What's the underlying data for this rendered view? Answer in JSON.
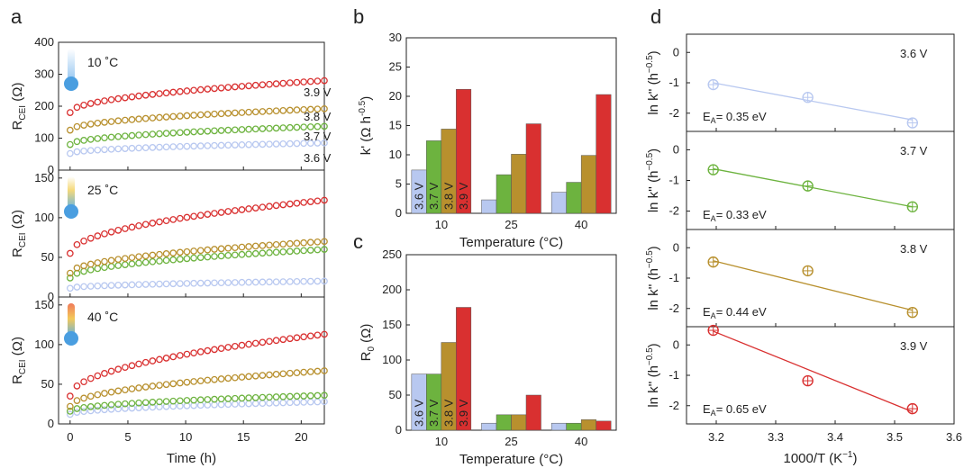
{
  "panel_letters": {
    "a": "a",
    "b": "b",
    "c": "c",
    "d": "d"
  },
  "colors": {
    "3.6 V": "#b8c8f0",
    "3.7 V": "#6db33f",
    "3.8 V": "#b8902e",
    "3.9 V": "#d93030"
  },
  "chart_data": [
    {
      "id": "a",
      "type": "scatter",
      "xlabel": "Time (h)",
      "ylabel_main": "R",
      "ylabel_sub": "CEI",
      "ylabel_unit": " (Ω)",
      "xlim": [
        -1,
        22
      ],
      "xticks": [
        0,
        5,
        10,
        15,
        20
      ],
      "subplots": [
        {
          "temp_label": "10 ˚C",
          "ylim": [
            0,
            400
          ],
          "yticks": [
            0,
            100,
            200,
            300,
            400
          ],
          "series_labels": [
            "3.6 V",
            "3.7 V",
            "3.8 V",
            "3.9 V"
          ],
          "series": [
            {
              "name": "3.6 V",
              "start": 52,
              "end": 85
            },
            {
              "name": "3.7 V",
              "start": 80,
              "end": 137
            },
            {
              "name": "3.8 V",
              "start": 125,
              "end": 192
            },
            {
              "name": "3.9 V",
              "start": 180,
              "end": 280
            }
          ]
        },
        {
          "temp_label": "25 ˚C",
          "ylim": [
            0,
            160
          ],
          "yticks": [
            0,
            50,
            100,
            150
          ],
          "series_labels": [],
          "series": [
            {
              "name": "3.6 V",
              "start": 11,
              "end": 20
            },
            {
              "name": "3.7 V",
              "start": 24,
              "end": 60
            },
            {
              "name": "3.8 V",
              "start": 30,
              "end": 70
            },
            {
              "name": "3.9 V",
              "start": 55,
              "end": 122
            }
          ]
        },
        {
          "temp_label": "40 ˚C",
          "ylim": [
            0,
            160
          ],
          "yticks": [
            0,
            50,
            100,
            150
          ],
          "series_labels": [],
          "series": [
            {
              "name": "3.6 V",
              "start": 12,
              "end": 28
            },
            {
              "name": "3.7 V",
              "start": 16,
              "end": 36
            },
            {
              "name": "3.8 V",
              "start": 22,
              "end": 67
            },
            {
              "name": "3.9 V",
              "start": 35,
              "end": 113
            }
          ]
        }
      ]
    },
    {
      "id": "b",
      "type": "bar",
      "categories": [
        "10",
        "25",
        "40"
      ],
      "xlabel": "Temperature (°C)",
      "ylabel": "k' (Ω h",
      "ylabel_sup": "-0.5",
      "ylabel_end": ")",
      "ylim": [
        0,
        30
      ],
      "yticks": [
        0,
        5,
        10,
        15,
        20,
        25,
        30
      ],
      "bar_labels": [
        "3.6 V",
        "3.7 V",
        "3.8 V",
        "3.9 V"
      ],
      "series": [
        {
          "name": "3.6 V",
          "values": [
            7.4,
            2.3,
            3.6
          ]
        },
        {
          "name": "3.7 V",
          "values": [
            12.4,
            6.6,
            5.3
          ]
        },
        {
          "name": "3.8 V",
          "values": [
            14.4,
            10.1,
            9.9
          ]
        },
        {
          "name": "3.9 V",
          "values": [
            21.2,
            15.3,
            20.3
          ]
        }
      ]
    },
    {
      "id": "c",
      "type": "bar",
      "categories": [
        "10",
        "25",
        "40"
      ],
      "xlabel": "Temperature (°C)",
      "ylabel": "R",
      "ylabel_sub": "0",
      "ylabel_end": " (Ω)",
      "ylim": [
        0,
        250
      ],
      "yticks": [
        0,
        50,
        100,
        150,
        200,
        250
      ],
      "bar_labels": [
        "3.6 V",
        "3.7 V",
        "3.8 V",
        "3.9 V"
      ],
      "series": [
        {
          "name": "3.6 V",
          "values": [
            80,
            10,
            10
          ]
        },
        {
          "name": "3.7 V",
          "values": [
            80,
            22,
            10
          ]
        },
        {
          "name": "3.8 V",
          "values": [
            125,
            22,
            15
          ]
        },
        {
          "name": "3.9 V",
          "values": [
            175,
            50,
            13
          ]
        }
      ]
    },
    {
      "id": "d",
      "type": "scatter",
      "xlabel": "1000/T (K",
      "xlabel_sup": "−1",
      "xlabel_end": ")",
      "ylabel": "ln k'' (h",
      "ylabel_sup": "−0.5",
      "ylabel_end": ")",
      "xlim": [
        3.15,
        3.6
      ],
      "xticks": [
        "3.2",
        "3.3",
        "3.4",
        "3.5",
        "3.6"
      ],
      "subplots": [
        {
          "voltage": "3.6 V",
          "ea_prefix": "E",
          "ea_sub": "A",
          "ea_text": "= 0.35 eV",
          "ylim": [
            -2.6,
            0.6
          ],
          "yticks": [
            "0",
            "-1",
            "-2"
          ],
          "points": [
            {
              "x": 3.195,
              "y": -1.06
            },
            {
              "x": 3.354,
              "y": -1.48
            },
            {
              "x": 3.53,
              "y": -2.32
            }
          ],
          "fit": [
            {
              "x": 3.195,
              "y": -1.0
            },
            {
              "x": 3.53,
              "y": -2.22
            }
          ]
        },
        {
          "voltage": "3.7 V",
          "ea_prefix": "E",
          "ea_sub": "A",
          "ea_text": "= 0.33 eV",
          "ylim": [
            -2.6,
            0.6
          ],
          "yticks": [
            "0",
            "-1",
            "-2"
          ],
          "points": [
            {
              "x": 3.195,
              "y": -0.65
            },
            {
              "x": 3.354,
              "y": -1.18
            },
            {
              "x": 3.53,
              "y": -1.86
            }
          ],
          "fit": [
            {
              "x": 3.195,
              "y": -0.62
            },
            {
              "x": 3.53,
              "y": -1.86
            }
          ]
        },
        {
          "voltage": "3.8 V",
          "ea_prefix": "E",
          "ea_sub": "A",
          "ea_text": "= 0.44 eV",
          "ylim": [
            -2.6,
            0.6
          ],
          "yticks": [
            "0",
            "-1",
            "-2"
          ],
          "points": [
            {
              "x": 3.195,
              "y": -0.47
            },
            {
              "x": 3.354,
              "y": -0.76
            },
            {
              "x": 3.53,
              "y": -2.13
            }
          ],
          "fit": [
            {
              "x": 3.195,
              "y": -0.43
            },
            {
              "x": 3.53,
              "y": -2.06
            }
          ]
        },
        {
          "voltage": "3.9 V",
          "ea_prefix": "E",
          "ea_sub": "A",
          "ea_text": "= 0.65 eV",
          "ylim": [
            -2.6,
            0.6
          ],
          "yticks": [
            "0",
            "-1",
            "-2"
          ],
          "points": [
            {
              "x": 3.195,
              "y": 0.48
            },
            {
              "x": 3.354,
              "y": -1.18
            },
            {
              "x": 3.53,
              "y": -2.1
            }
          ],
          "fit": [
            {
              "x": 3.195,
              "y": 0.45
            },
            {
              "x": 3.53,
              "y": -2.2
            }
          ]
        }
      ]
    }
  ]
}
